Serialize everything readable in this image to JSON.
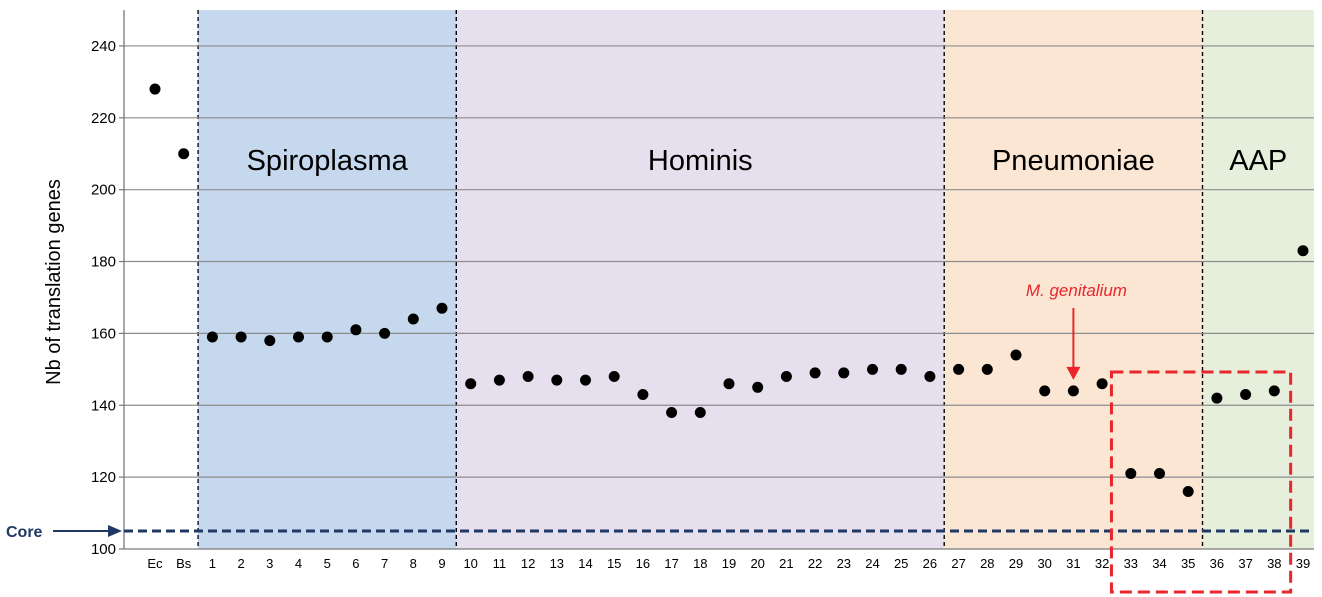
{
  "chart_data": {
    "type": "scatter",
    "ylabel": "Nb of translation genes",
    "ylim": [
      100,
      250
    ],
    "yticks": [
      100,
      120,
      140,
      160,
      180,
      200,
      220,
      240
    ],
    "grid": true,
    "categories": [
      "Ec",
      "Bs",
      "1",
      "2",
      "3",
      "4",
      "5",
      "6",
      "7",
      "8",
      "9",
      "10",
      "11",
      "12",
      "13",
      "14",
      "15",
      "16",
      "17",
      "18",
      "19",
      "20",
      "21",
      "22",
      "23",
      "24",
      "25",
      "26",
      "27",
      "28",
      "29",
      "30",
      "31",
      "32",
      "33",
      "34",
      "35",
      "36",
      "37",
      "38",
      "39"
    ],
    "values": [
      228,
      210,
      159,
      159,
      158,
      159,
      159,
      161,
      160,
      164,
      167,
      146,
      147,
      148,
      147,
      147,
      148,
      143,
      138,
      138,
      146,
      145,
      148,
      149,
      149,
      150,
      150,
      148,
      150,
      150,
      154,
      144,
      144,
      146,
      121,
      121,
      116,
      142,
      143,
      144,
      183
    ],
    "regions": [
      {
        "label": "Spiroplasma",
        "start": "1",
        "end": "9",
        "color": "#c5d8ee"
      },
      {
        "label": "Hominis",
        "start": "10",
        "end": "26",
        "color": "#e6e0ee"
      },
      {
        "label": "Pneumoniae",
        "start": "27",
        "end": "35",
        "color": "#fbe6d4"
      },
      {
        "label": "AAP",
        "start": "36",
        "end": "38",
        "color": "#e6efdb"
      }
    ],
    "core": {
      "label": "Core",
      "value": 105,
      "color": "#1f3864"
    },
    "annotations": [
      {
        "text": "M. genitalium",
        "category": "31",
        "color": "#e8262c"
      }
    ],
    "highlight_box": {
      "start": "33",
      "end": "38",
      "color": "#e8262c"
    }
  }
}
